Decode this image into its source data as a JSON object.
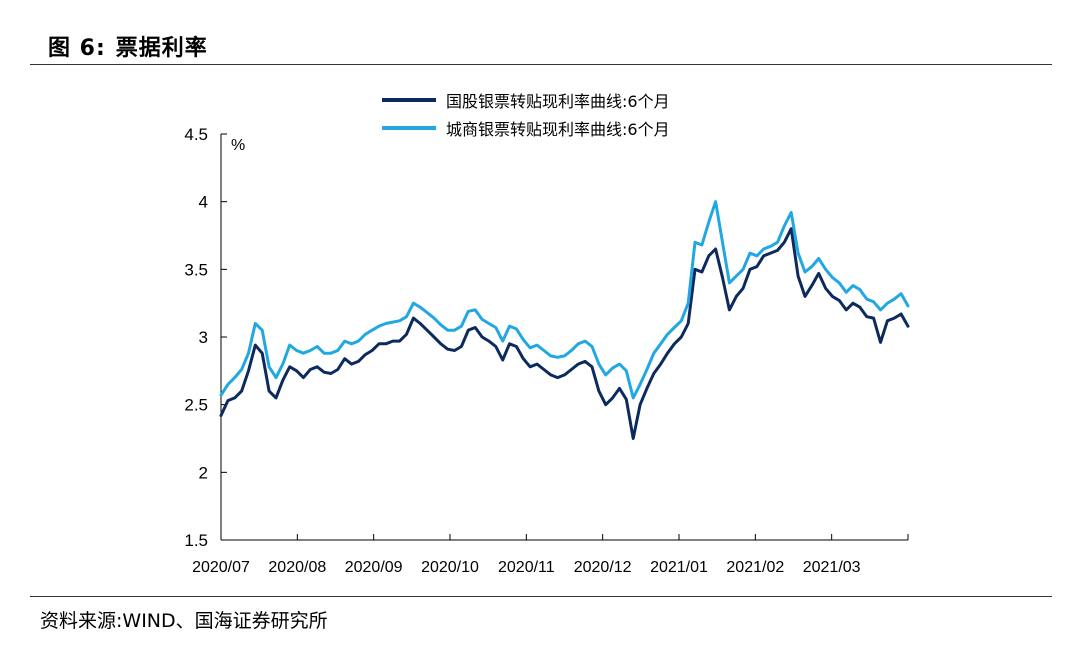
{
  "figure": {
    "label": "图 6:",
    "title": "票据利率",
    "source": "资料来源:WIND、国海证券研究所"
  },
  "chart_data": {
    "type": "line",
    "ylabel": "%",
    "ylim": [
      1.5,
      4.5
    ],
    "yticks": [
      "4.5",
      "4",
      "3.5",
      "3",
      "2.5",
      "2",
      "1.5"
    ],
    "xticks": [
      "2020/07",
      "2020/08",
      "2020/09",
      "2020/10",
      "2020/11",
      "2020/12",
      "2021/01",
      "2021/02",
      "2021/03"
    ],
    "grid": false,
    "legend_position": "top-center",
    "series": [
      {
        "name": "国股银票转贴现利率曲线:6个月",
        "color": "#0d2a5e",
        "values": [
          2.42,
          2.53,
          2.55,
          2.6,
          2.75,
          2.94,
          2.88,
          2.6,
          2.55,
          2.68,
          2.78,
          2.75,
          2.7,
          2.76,
          2.78,
          2.74,
          2.73,
          2.76,
          2.84,
          2.8,
          2.82,
          2.87,
          2.9,
          2.95,
          2.95,
          2.97,
          2.97,
          3.02,
          3.14,
          3.1,
          3.05,
          3.0,
          2.95,
          2.91,
          2.9,
          2.93,
          3.05,
          3.07,
          3.0,
          2.97,
          2.93,
          2.83,
          2.95,
          2.93,
          2.84,
          2.78,
          2.8,
          2.76,
          2.72,
          2.7,
          2.72,
          2.76,
          2.8,
          2.82,
          2.78,
          2.6,
          2.5,
          2.55,
          2.62,
          2.54,
          2.25,
          2.5,
          2.62,
          2.73,
          2.8,
          2.88,
          2.95,
          3.0,
          3.1,
          3.5,
          3.48,
          3.6,
          3.65,
          3.44,
          3.2,
          3.3,
          3.36,
          3.5,
          3.52,
          3.6,
          3.62,
          3.64,
          3.7,
          3.8,
          3.45,
          3.3,
          3.38,
          3.47,
          3.36,
          3.3,
          3.27,
          3.2,
          3.25,
          3.22,
          3.15,
          3.14,
          2.96,
          3.12,
          3.14,
          3.17,
          3.08
        ]
      },
      {
        "name": "城商银票转贴现利率曲线:6个月",
        "color": "#21a8e2",
        "values": [
          2.57,
          2.65,
          2.7,
          2.76,
          2.88,
          3.1,
          3.05,
          2.78,
          2.7,
          2.8,
          2.94,
          2.9,
          2.88,
          2.9,
          2.93,
          2.88,
          2.88,
          2.9,
          2.97,
          2.95,
          2.97,
          3.02,
          3.05,
          3.08,
          3.1,
          3.11,
          3.12,
          3.15,
          3.25,
          3.22,
          3.18,
          3.14,
          3.09,
          3.05,
          3.05,
          3.08,
          3.19,
          3.2,
          3.13,
          3.1,
          3.07,
          2.97,
          3.08,
          3.06,
          2.98,
          2.92,
          2.94,
          2.9,
          2.86,
          2.85,
          2.86,
          2.9,
          2.95,
          2.97,
          2.93,
          2.8,
          2.72,
          2.77,
          2.8,
          2.75,
          2.55,
          2.65,
          2.76,
          2.88,
          2.95,
          3.02,
          3.07,
          3.12,
          3.25,
          3.7,
          3.68,
          3.85,
          4.0,
          3.7,
          3.4,
          3.45,
          3.5,
          3.62,
          3.6,
          3.65,
          3.67,
          3.7,
          3.82,
          3.92,
          3.62,
          3.48,
          3.52,
          3.58,
          3.5,
          3.44,
          3.4,
          3.33,
          3.38,
          3.35,
          3.28,
          3.26,
          3.2,
          3.25,
          3.28,
          3.32,
          3.23
        ]
      }
    ]
  }
}
